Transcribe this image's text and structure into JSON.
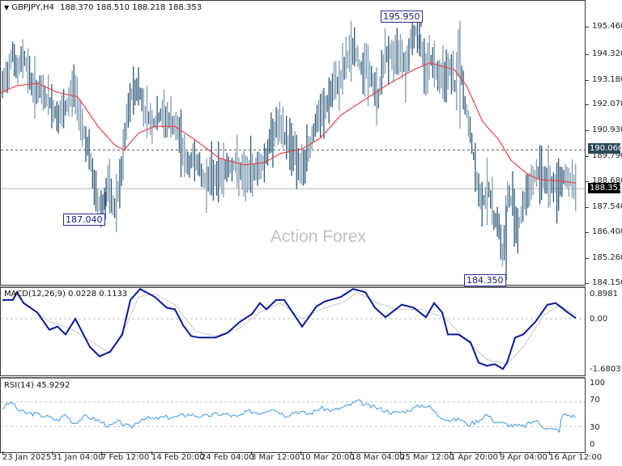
{
  "header": {
    "symbol_title": "GBPJPY,H4",
    "ohlc": "188.370 188.510 188.218 188.353",
    "dropdown_icon": "triangle-down-icon"
  },
  "watermark": "Action Forex",
  "colors": {
    "bar_light": "#7f9cb1",
    "bar_dark": "#2e5877",
    "ma_line": "#e8454a",
    "macd_line": "#0a1a94",
    "signal_line": "#c8c8c8",
    "rsi_line": "#3a96e6",
    "level_line": "#bbbbbb",
    "price_tag_bg": "#000000",
    "level_tag_bg": "#2c4a58"
  },
  "price_axis": {
    "ticks": [
      "195.460",
      "194.320",
      "193.180",
      "192.070",
      "190.930",
      "189.790",
      "188.680",
      "187.540",
      "186.400",
      "185.260",
      "184.150"
    ],
    "current_price_tag": "188.353",
    "level_tag": "190.060"
  },
  "callouts": {
    "high": "195.950",
    "low_left": "187.040",
    "low_right": "184.350"
  },
  "macd": {
    "title": "MACD(12,26,9) 0.0228 0.1133",
    "ticks": [
      "0.8981",
      "0.00",
      "-1.6803"
    ]
  },
  "rsi": {
    "title": "RSI(14) 45.9292",
    "ticks": [
      "100",
      "70",
      "30",
      "0"
    ]
  },
  "time_axis": {
    "labels": [
      "23 Jan 2025",
      "31 Jan 04:00",
      "7 Feb 12:00",
      "14 Feb 20:00",
      "24 Feb 04:00",
      "3 Mar 12:00",
      "10 Mar 20:00",
      "18 Mar 04:00",
      "25 Mar 12:00",
      "1 Apr 20:00",
      "9 Apr 04:00",
      "16 Apr 12:00"
    ]
  },
  "chart_data": [
    {
      "type": "ohlc",
      "title": "GBPJPY,H4 188.370 188.510 188.218 188.353",
      "xlabel": "",
      "ylabel": "",
      "ylim": [
        184.15,
        196.0
      ],
      "x": [
        "23 Jan 2025",
        "31 Jan 04:00",
        "7 Feb 12:00",
        "14 Feb 20:00",
        "24 Feb 04:00",
        "3 Mar 12:00",
        "10 Mar 20:00",
        "18 Mar 04:00",
        "25 Mar 12:00",
        "1 Apr 20:00",
        "9 Apr 04:00",
        "16 Apr 12:00"
      ],
      "series": [
        {
          "name": "close_approx",
          "values": [
            193.2,
            192.6,
            188.2,
            191.5,
            189.2,
            189.5,
            191.6,
            194.4,
            194.8,
            189.0,
            188.2,
            188.4
          ]
        },
        {
          "name": "moving_average_approx",
          "values": [
            192.6,
            192.8,
            190.1,
            191.1,
            189.8,
            189.6,
            190.5,
            192.2,
            193.6,
            191.5,
            188.7,
            188.6
          ]
        }
      ],
      "annotations": [
        {
          "label": "195.950",
          "type": "high"
        },
        {
          "label": "187.040",
          "type": "low"
        },
        {
          "label": "184.350",
          "type": "low"
        },
        {
          "label": "190.060",
          "type": "horizontal_level"
        },
        {
          "label": "188.353",
          "type": "current_price"
        }
      ],
      "watermark": "Action Forex"
    },
    {
      "type": "line",
      "title": "MACD(12,26,9) 0.0228 0.1133",
      "ylim": [
        -1.6803,
        0.8981
      ],
      "x": [
        "23 Jan 2025",
        "31 Jan 04:00",
        "7 Feb 12:00",
        "14 Feb 20:00",
        "24 Feb 04:00",
        "3 Mar 12:00",
        "10 Mar 20:00",
        "18 Mar 04:00",
        "25 Mar 12:00",
        "1 Apr 20:00",
        "9 Apr 04:00",
        "16 Apr 12:00"
      ],
      "series": [
        {
          "name": "MACD",
          "values": [
            0.6,
            -0.2,
            -1.1,
            0.5,
            -0.6,
            -0.3,
            0.1,
            0.9,
            0.1,
            -1.3,
            -0.5,
            0.02
          ]
        },
        {
          "name": "Signal",
          "values": [
            0.5,
            0.0,
            -0.9,
            0.4,
            -0.4,
            -0.3,
            0.0,
            0.7,
            0.2,
            -1.1,
            -0.7,
            0.11
          ]
        }
      ]
    },
    {
      "type": "line",
      "title": "RSI(14) 45.9292",
      "ylim": [
        0,
        100
      ],
      "levels": [
        30,
        70
      ],
      "x": [
        "23 Jan 2025",
        "31 Jan 04:00",
        "7 Feb 12:00",
        "14 Feb 20:00",
        "24 Feb 04:00",
        "3 Mar 12:00",
        "10 Mar 20:00",
        "18 Mar 04:00",
        "25 Mar 12:00",
        "1 Apr 20:00",
        "9 Apr 04:00",
        "16 Apr 12:00"
      ],
      "series": [
        {
          "name": "RSI",
          "values": [
            65,
            50,
            40,
            50,
            35,
            48,
            55,
            66,
            55,
            40,
            26,
            46
          ]
        }
      ]
    }
  ]
}
